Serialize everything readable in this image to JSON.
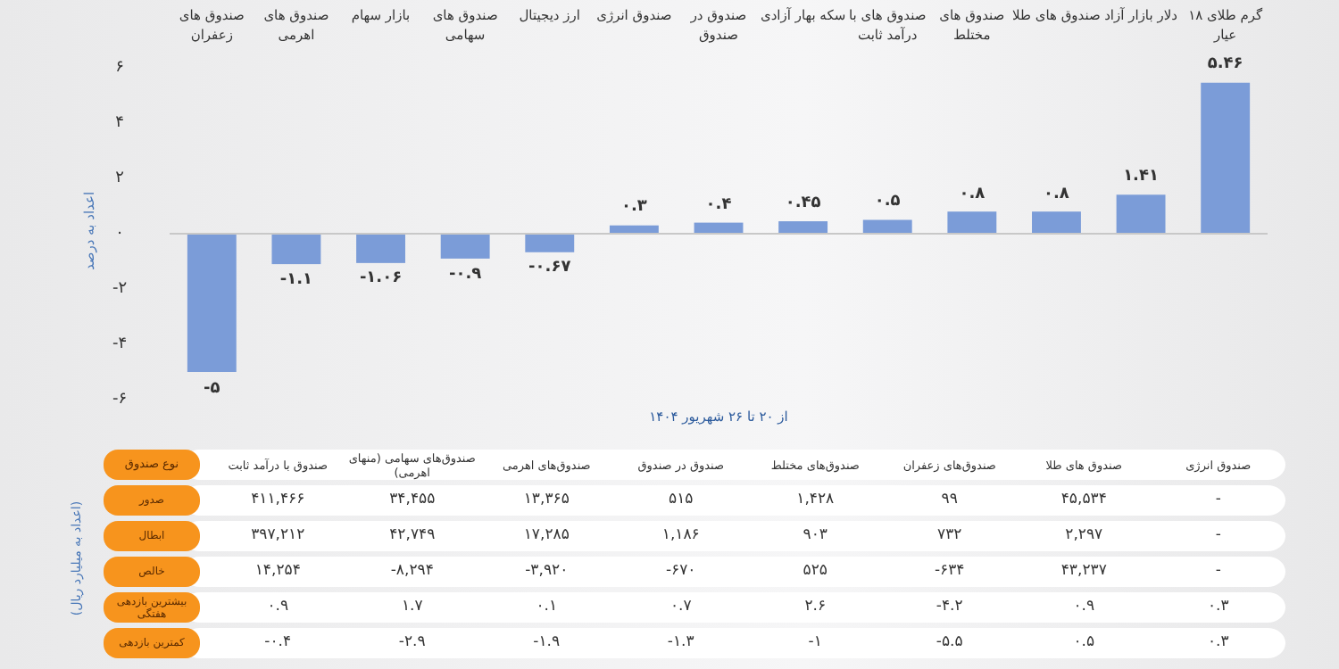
{
  "chart_data": [
    {
      "type": "bar",
      "ylabel": "اعداد به درصد",
      "xlabel": "از ۲۰ تا ۲۶ شهریور ۱۴۰۴",
      "categories": [
        "صندوق های زعفران",
        "صندوق های اهرمی",
        "بازار سهام",
        "صندوق های سهامی",
        "ارز دیجیتال",
        "صندوق انرژی",
        "صندوق در صندوق",
        "سکه بهار آزادی",
        "صندوق های با درآمد ثابت",
        "صندوق های مختلط",
        "صندوق های طلا",
        "دلار بازار آزاد",
        "گرم طلای ۱۸ عیار"
      ],
      "values": [
        -5,
        -1.1,
        -1.06,
        -0.9,
        -0.67,
        0.3,
        0.4,
        0.45,
        0.5,
        0.8,
        0.8,
        1.41,
        5.46
      ],
      "value_labels": [
        "-۵",
        "-۱.۱",
        "-۱.۰۶",
        "-۰.۹",
        "-۰.۶۷",
        "۰.۳",
        "۰.۴",
        "۰.۴۵",
        "۰.۵",
        "۰.۸",
        "۰.۸",
        "۱.۴۱",
        "۵.۴۶"
      ],
      "color": "#7b9cd8",
      "ylim": [
        -6,
        6
      ],
      "yticks": [
        {
          "value": -6,
          "label": "-۶"
        },
        {
          "value": -4,
          "label": "-۴"
        },
        {
          "value": -2,
          "label": "-۲"
        },
        {
          "value": 0,
          "label": "۰"
        },
        {
          "value": 2,
          "label": "۲"
        },
        {
          "value": 4,
          "label": "۴"
        },
        {
          "value": 6,
          "label": "۶"
        }
      ],
      "orientation": "vertical"
    },
    {
      "type": "other",
      "ylabel": "(اعداد به میلیارد ریال)",
      "xlabel": "نوع صندوق",
      "categories": [
        "صندوق با درآمد ثابت",
        "صندوق‌های سهامی (منهای اهرمی)",
        "صندوق‌های اهرمی",
        "صندوق در صندوق",
        "صندوق‌های مختلط",
        "صندوق‌های زعفران",
        "صندوق های طلا",
        "صندوق انرژی"
      ],
      "y_categories": [
        "صدور",
        "ابطال",
        "خالص",
        "بیشترین بازدهی هفتگی",
        "کمترین بازدهی"
      ],
      "cell_labels": [
        [
          "۴۱۱,۴۶۶",
          "۳۴,۴۵۵",
          "۱۳,۳۶۵",
          "۵۱۵",
          "۱,۴۲۸",
          "۹۹",
          "۴۵,۵۳۴",
          "-"
        ],
        [
          "۳۹۷,۲۱۲",
          "۴۲,۷۴۹",
          "۱۷,۲۸۵",
          "۱,۱۸۶",
          "۹۰۳",
          "۷۳۲",
          "۲,۲۹۷",
          "-"
        ],
        [
          "۱۴,۲۵۴",
          "-۸,۲۹۴",
          "-۳,۹۲۰",
          "-۶۷۰",
          "۵۲۵",
          "-۶۳۴",
          "۴۳,۲۳۷",
          "-"
        ],
        [
          "۰.۹",
          "۱.۷",
          "۰.۱",
          "۰.۷",
          "۲.۶",
          "-۴.۲",
          "۰.۹",
          "۰.۳"
        ],
        [
          "-۰.۴",
          "-۲.۹",
          "-۱.۹",
          "-۱.۳",
          "-۱",
          "-۵.۵",
          "۰.۵",
          "۰.۳"
        ]
      ],
      "color": "#f7941d"
    }
  ]
}
